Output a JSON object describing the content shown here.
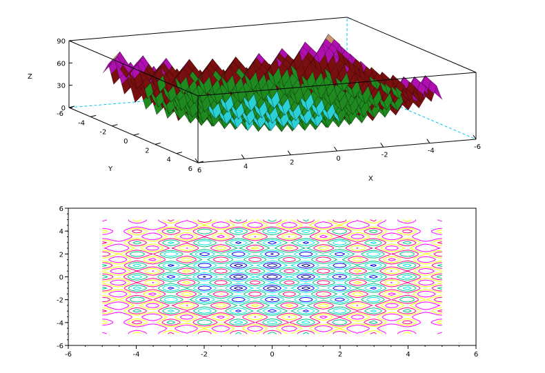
{
  "colors": {
    "axis": "#000000",
    "hidden_axis": "#00c8e8",
    "surface_palette": [
      "#2ad0d4",
      "#1f8a1f",
      "#7a0f10",
      "#b00fb0",
      "#c8956a"
    ],
    "contour_palette": [
      "#000080",
      "#0000ff",
      "#00e8e8",
      "#00c080",
      "#ff0080",
      "#ffff00",
      "#ff00ff"
    ]
  },
  "chart_data": [
    {
      "type": "surface",
      "xlabel": "X",
      "ylabel": "Y",
      "zlabel": "Z",
      "xlim": [
        -6,
        6
      ],
      "ylim": [
        -6,
        6
      ],
      "zlim": [
        0,
        90
      ],
      "x_ticks": [
        "6",
        "4",
        "2",
        "0",
        "-2",
        "-4",
        "-6"
      ],
      "y_ticks": [
        "-6",
        "-4",
        "-2",
        "0",
        "2",
        "4",
        "6"
      ],
      "z_ticks": [
        "0",
        "30",
        "60",
        "90"
      ],
      "domain": {
        "x": [
          -5,
          5
        ],
        "y": [
          -5,
          5
        ]
      },
      "grid": false
    },
    {
      "type": "contour",
      "xlabel": "",
      "ylabel": "",
      "xlim": [
        -6,
        6
      ],
      "ylim": [
        -6,
        6
      ],
      "x_ticks": [
        "-6",
        "-4",
        "-2",
        "0",
        "2",
        "4",
        "6"
      ],
      "y_ticks": [
        "-6",
        "-4",
        "-2",
        "0",
        "2",
        "4",
        "6"
      ],
      "domain": {
        "x": [
          -5,
          5
        ],
        "y": [
          -5,
          5
        ]
      },
      "grid": false
    }
  ]
}
